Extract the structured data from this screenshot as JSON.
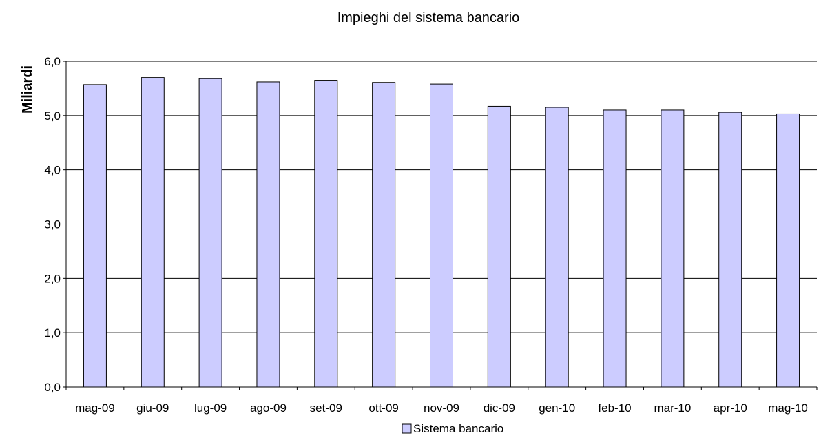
{
  "chart_data": {
    "type": "bar",
    "title": "Impieghi del sistema bancario",
    "xlabel": "",
    "ylabel": "Miliardi",
    "categories": [
      "mag-09",
      "giu-09",
      "lug-09",
      "ago-09",
      "set-09",
      "ott-09",
      "nov-09",
      "dic-09",
      "gen-10",
      "feb-10",
      "mar-10",
      "apr-10",
      "mag-10"
    ],
    "series": [
      {
        "name": "Sistema bancario",
        "color": "#ccccff",
        "values": [
          5.57,
          5.7,
          5.68,
          5.62,
          5.65,
          5.61,
          5.58,
          5.17,
          5.15,
          5.1,
          5.1,
          5.06,
          5.03
        ]
      }
    ],
    "ylim": [
      0,
      6
    ],
    "yticks": [
      "0,0",
      "1,0",
      "2,0",
      "3,0",
      "4,0",
      "5,0",
      "6,0"
    ],
    "grid": true,
    "legend_position": "bottom"
  }
}
